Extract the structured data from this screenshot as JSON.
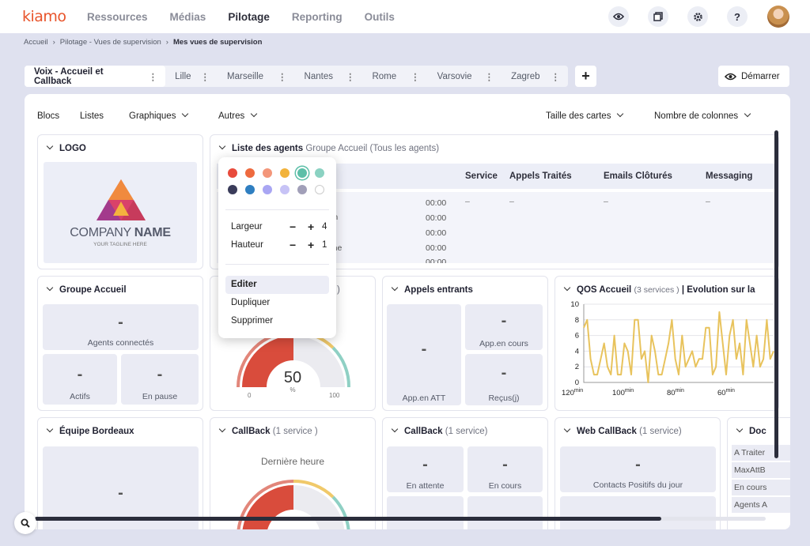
{
  "brand": "kiamo",
  "nav": [
    "Ressources",
    "Médias",
    "Pilotage",
    "Reporting",
    "Outils"
  ],
  "top_icons": {
    "help": "?"
  },
  "breadcrumb": {
    "home": "Accueil",
    "parent": "Pilotage - Vues de supervision",
    "current": "Mes vues de supervision"
  },
  "tabs": [
    "Voix - Accueil et Callback",
    "Lille",
    "Marseille",
    "Nantes",
    "Rome",
    "Varsovie",
    "Zagreb"
  ],
  "add_tab": "+",
  "start_label": "Démarrer",
  "toolbar": {
    "blocs": "Blocs",
    "listes": "Listes",
    "graphiques": "Graphiques",
    "autres": "Autres",
    "taille": "Taille des cartes",
    "colonnes": "Nombre de colonnes"
  },
  "logo_card": {
    "title": "LOGO",
    "company": "COMPANY",
    "name": "NAME",
    "tagline": "YOUR TAGLINE HERE"
  },
  "agents": {
    "title": "Liste des agents",
    "sub": "Groupe Accueil (Tous les agents)",
    "cols": [
      "Service",
      "Appels Traités",
      "Emails Clôturés",
      "Messaging"
    ],
    "partials": [
      "nication",
      "de tâche"
    ],
    "times": [
      "00:00",
      "00:00",
      "00:00",
      "00:00",
      "00:00"
    ],
    "dash": "–"
  },
  "groupe": {
    "title": "Groupe Accueil",
    "dash": "-",
    "connected": "Agents connectés",
    "actifs": "Actifs",
    "pause": "En pause"
  },
  "gauge1": {
    "value": "50",
    "unit": "%",
    "min": "0",
    "max": "100",
    "paren": ")"
  },
  "appels": {
    "title": "Appels entrants",
    "dash": "-",
    "att": "App.en ATT",
    "cours": "App.en cours",
    "recus": "Reçus(j)"
  },
  "qos": {
    "title": "QOS Accueil",
    "sub": "(3 services )",
    "rest": "| Evolution sur la",
    "yticks": [
      "10",
      "8",
      "6",
      "4",
      "2",
      "0"
    ],
    "xticks": [
      {
        "v": "120",
        "u": "min"
      },
      {
        "v": "100",
        "u": "min"
      },
      {
        "v": "80",
        "u": "min"
      },
      {
        "v": "60",
        "u": "min"
      }
    ]
  },
  "chart_data": {
    "type": "line",
    "ylim": [
      0,
      10
    ],
    "x_label_ticks": [
      "120min",
      "100min",
      "80min",
      "60min"
    ],
    "series": [
      {
        "values": [
          7,
          8,
          3,
          1,
          1,
          3,
          5,
          2,
          1,
          6,
          1,
          1,
          5,
          4,
          1,
          8,
          8,
          3,
          4,
          0,
          6,
          4,
          1,
          1,
          3,
          5,
          8,
          3,
          1,
          6,
          2,
          3,
          4,
          2,
          3,
          3,
          7,
          7,
          1,
          2,
          9,
          5,
          1,
          6,
          8,
          3,
          5,
          1,
          8,
          5,
          2,
          6,
          2,
          3,
          8,
          3,
          4
        ]
      }
    ],
    "color": "#e8c35d"
  },
  "bordeaux": {
    "title": "Équipe Bordeaux",
    "dash": "-"
  },
  "callback1": {
    "title": "CallBack",
    "sub": "(1 service )",
    "last": "Dernière heure"
  },
  "callback2": {
    "title": "CallBack",
    "sub": "(1 service)",
    "dash": "-",
    "wait": "En attente",
    "cours": "En cours"
  },
  "webcb": {
    "title": "Web CallBack",
    "sub": "(1 service)",
    "dash": "-",
    "contacts": "Contacts Positifs du jour"
  },
  "doc": {
    "title": "Doc",
    "rows": [
      "A Traiter",
      "MaxAttB",
      "En cours",
      "Agents A"
    ]
  },
  "popup": {
    "colors": [
      "#e84b3c",
      "#ee6a3f",
      "#f3967a",
      "#f2b33b",
      "#5cbfa8",
      "#8bd2c2",
      "#3a3c5a",
      "#2f7fc1",
      "#a9a6f3",
      "#c7c3f6",
      "#a19fb8",
      "#ffffff"
    ],
    "largeur": "Largeur",
    "hauteur": "Hauteur",
    "minus": "−",
    "plus": "+",
    "largeur_val": "4",
    "hauteur_val": "1",
    "editer": "Editer",
    "dupliquer": "Dupliquer",
    "supprimer": "Supprimer"
  }
}
